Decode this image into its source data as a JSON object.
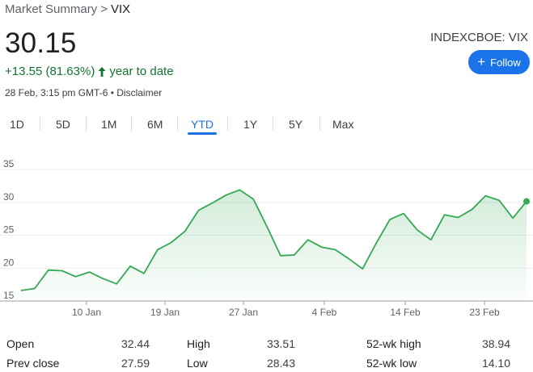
{
  "breadcrumb": {
    "parent": "Market Summary",
    "separator": ">",
    "current": "VIX"
  },
  "quote": {
    "price": "30.15",
    "change": "+13.55 (81.63%)",
    "change_period": "year to date",
    "timestamp": "28 Feb, 3:15 pm GMT-6 • Disclaimer",
    "ticker": "INDEXCBOE: VIX",
    "follow_label": "Follow",
    "positive_color": "#137333"
  },
  "tabs": [
    {
      "label": "1D",
      "active": false
    },
    {
      "label": "5D",
      "active": false
    },
    {
      "label": "1M",
      "active": false
    },
    {
      "label": "6M",
      "active": false
    },
    {
      "label": "YTD",
      "active": true
    },
    {
      "label": "1Y",
      "active": false
    },
    {
      "label": "5Y",
      "active": false
    },
    {
      "label": "Max",
      "active": false
    }
  ],
  "chart_data": {
    "type": "area",
    "series_color": "#34a853",
    "y_ticks": [
      "35",
      "30",
      "25",
      "20",
      "15"
    ],
    "x_ticks": [
      "10 Jan",
      "19 Jan",
      "27 Jan",
      "4 Feb",
      "14 Feb",
      "23 Feb"
    ],
    "ylim": [
      15,
      35
    ],
    "grid": true,
    "values": [
      16.6,
      16.9,
      19.7,
      19.6,
      18.7,
      19.4,
      18.4,
      17.6,
      20.3,
      19.2,
      22.8,
      23.9,
      25.6,
      28.8,
      29.9,
      31.1,
      31.9,
      30.5,
      26.3,
      21.9,
      22.0,
      24.3,
      23.2,
      22.8,
      21.4,
      19.9,
      23.8,
      27.4,
      28.3,
      25.8,
      24.3,
      28.1,
      27.7,
      28.9,
      31.0,
      30.3,
      27.6,
      30.15
    ]
  },
  "stats": [
    {
      "label": "Open",
      "value": "32.44"
    },
    {
      "label": "High",
      "value": "33.51"
    },
    {
      "label": "52-wk high",
      "value": "38.94"
    },
    {
      "label": "Prev close",
      "value": "27.59"
    },
    {
      "label": "Low",
      "value": "28.43"
    },
    {
      "label": "52-wk low",
      "value": "14.10"
    }
  ]
}
